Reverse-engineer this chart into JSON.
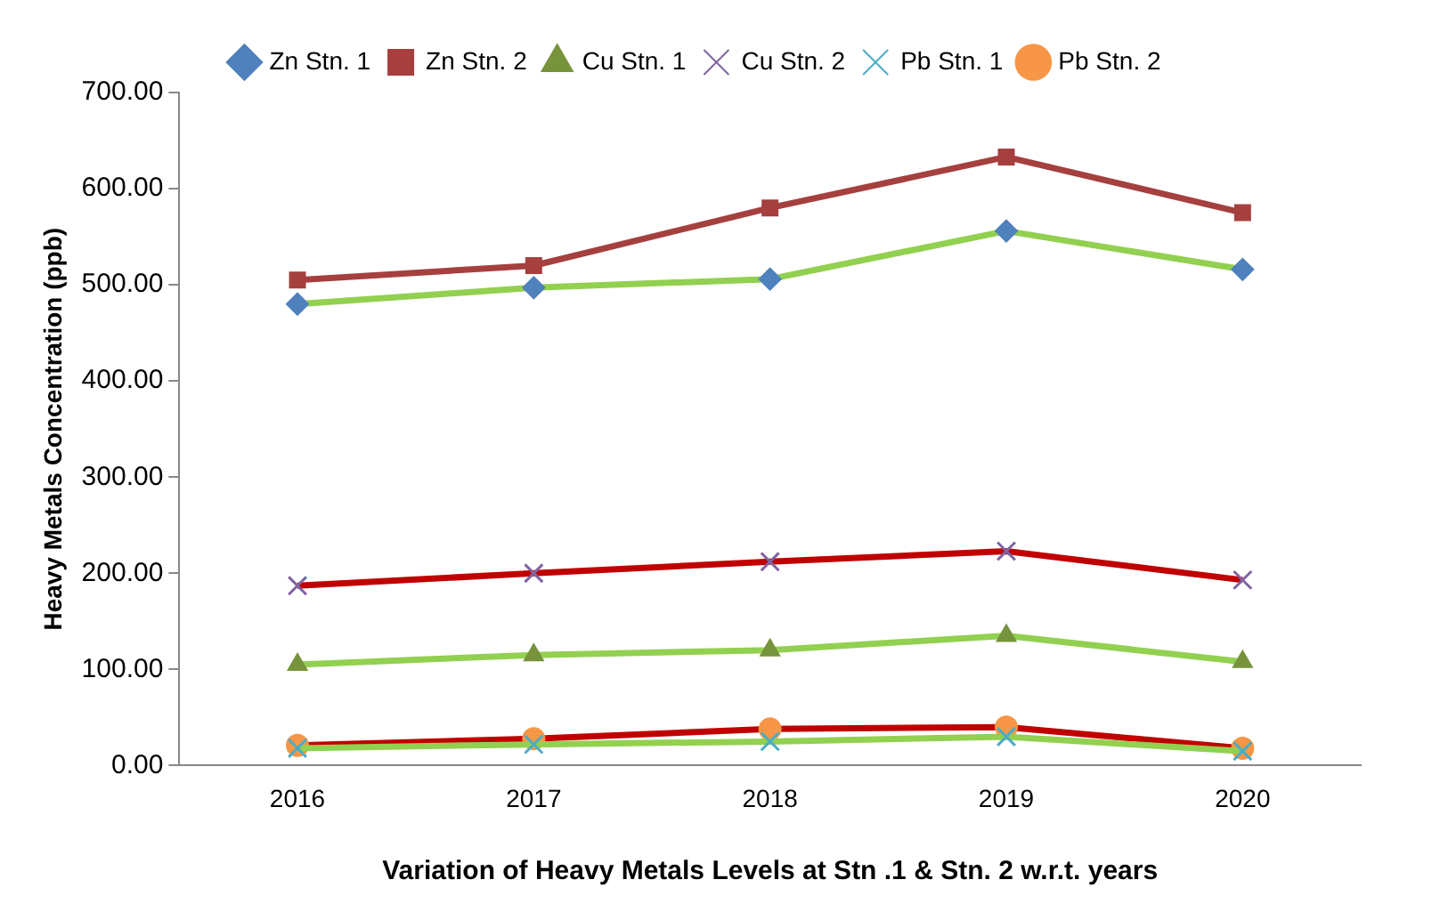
{
  "chart_data": {
    "type": "line",
    "xlabel": "Variation of Heavy Metals Levels at Stn .1 & Stn. 2 w.r.t. years",
    "ylabel": "Heavy Metals Concentration (ppb)",
    "categories": [
      "2016",
      "2017",
      "2018",
      "2019",
      "2020"
    ],
    "series": [
      {
        "name": "Zn Stn. 1",
        "color": "#92d050",
        "marker": "diamond",
        "colors": [
          "#4f81bd",
          "#4f81bd",
          "#4f81bd",
          "#4f81bd",
          "#4f81bd"
        ],
        "values": [
          480,
          497,
          506,
          556,
          516
        ]
      },
      {
        "name": "Zn Stn. 2",
        "color": "#a5403f",
        "marker": "square",
        "colors": [
          "#a5403f",
          "#a5403f",
          "#a5403f",
          "#a5403f",
          "#a5403f"
        ],
        "values": [
          505,
          520,
          580,
          633,
          575
        ]
      },
      {
        "name": "Cu Stn. 1",
        "color": "#92d050",
        "marker": "triangle",
        "colors": [
          "#77933c",
          "#77933c",
          "#77933c",
          "#77933c",
          "#77933c"
        ],
        "values": [
          105,
          115,
          120,
          135,
          108
        ]
      },
      {
        "name": "Cu Stn. 2",
        "color": "#c00000",
        "marker": "cross",
        "colors": [
          "#8064a2",
          "#8064a2",
          "#8064a2",
          "#8064a2",
          "#8064a2"
        ],
        "values": [
          187,
          200,
          212,
          223,
          193
        ]
      },
      {
        "name": "Pb Stn. 1",
        "color": "#92d050",
        "marker": "cross",
        "colors": [
          "#4bacc6",
          "#4bacc6",
          "#4bacc6",
          "#4bacc6",
          "#4bacc6"
        ],
        "values": [
          18,
          22,
          25,
          30,
          15
        ]
      },
      {
        "name": "Pb Stn. 2",
        "color": "#c00000",
        "marker": "circle",
        "colors": [
          "#f79646",
          "#f79646",
          "#f79646",
          "#f79646",
          "#f79646"
        ],
        "values": [
          21,
          28,
          38,
          40,
          18
        ]
      }
    ],
    "ylim": [
      0,
      700
    ],
    "yticks": [
      {
        "value": 0,
        "label": "0.00"
      },
      {
        "value": 100,
        "label": "100.00"
      },
      {
        "value": 200,
        "label": "200.00"
      },
      {
        "value": 300,
        "label": "300.00"
      },
      {
        "value": 400,
        "label": "400.00"
      },
      {
        "value": 500,
        "label": "500.00"
      },
      {
        "value": 600,
        "label": "600.00"
      },
      {
        "value": 700,
        "label": "700.00"
      }
    ],
    "grid": false,
    "legend": "top"
  }
}
